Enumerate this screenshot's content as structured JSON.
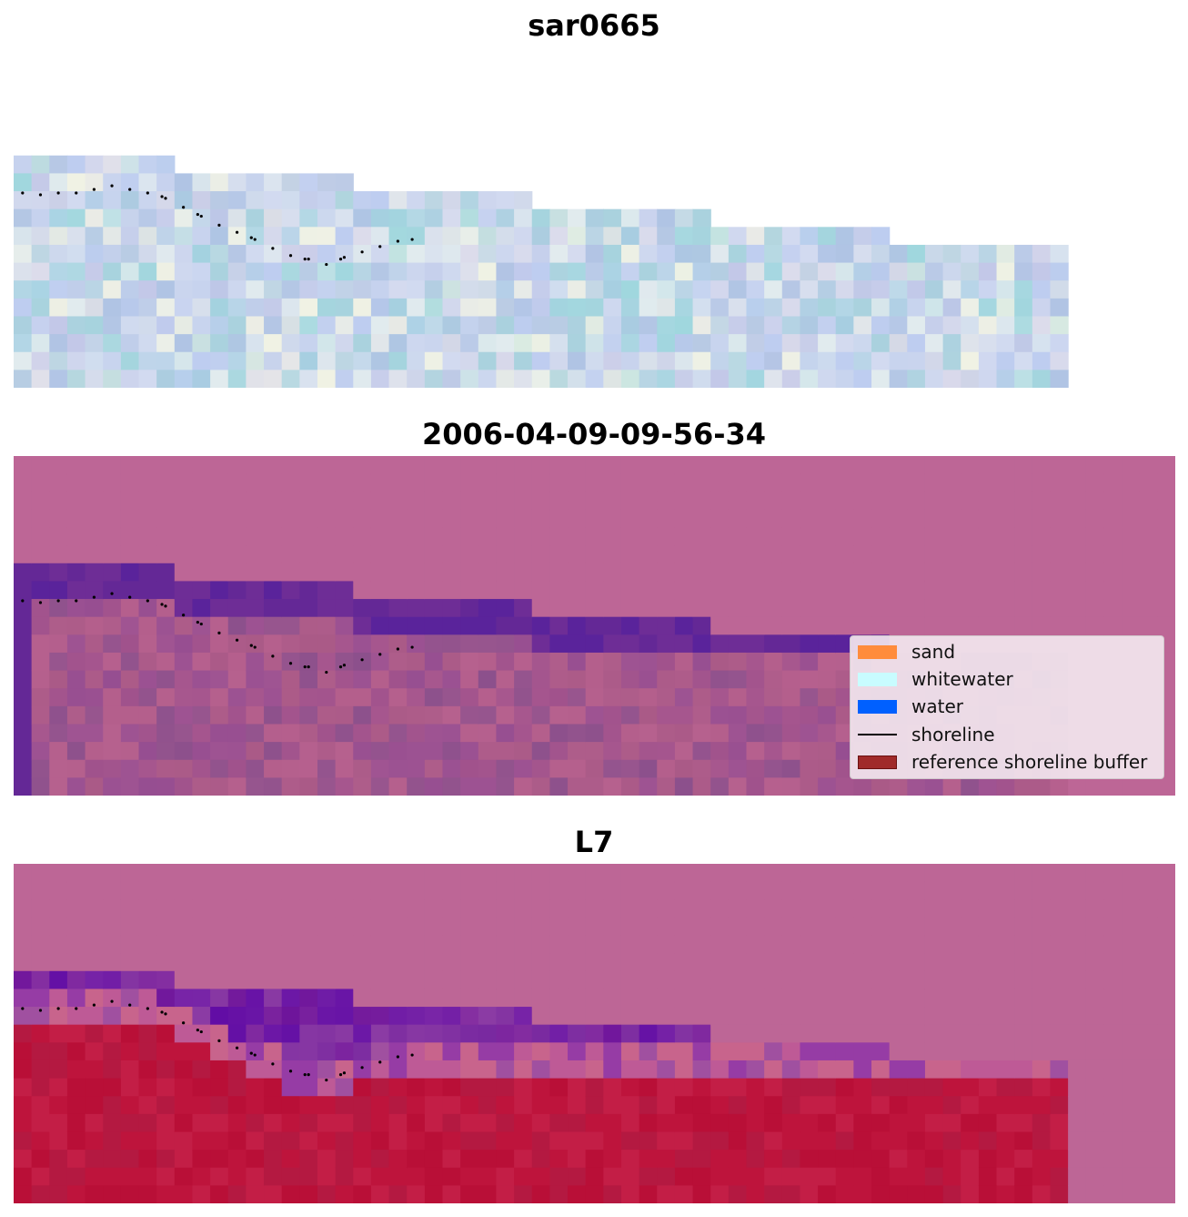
{
  "panels": [
    {
      "title": "sar0665",
      "style": "rgb"
    },
    {
      "title": "2006-04-09-09-56-34",
      "style": "classified"
    },
    {
      "title": "L7",
      "style": "mndwi"
    }
  ],
  "legend": {
    "items": [
      {
        "label": "sand",
        "color": "#ff8c3c",
        "kind": "patch"
      },
      {
        "label": "whitewater",
        "color": "#c8fcff",
        "kind": "patch"
      },
      {
        "label": "water",
        "color": "#0060ff",
        "kind": "patch"
      },
      {
        "label": "shoreline",
        "color": "#000000",
        "kind": "line"
      },
      {
        "label": "reference shoreline buffer",
        "color": "#a02a2a",
        "kind": "patch"
      }
    ]
  },
  "chart_data": {
    "type": "heatmap",
    "grid": {
      "columns": 65,
      "rows": 19
    },
    "valid_extent_steps": [
      {
        "col_start": 0,
        "col_end": 9,
        "row_start": 6
      },
      {
        "col_start": 9,
        "col_end": 19,
        "row_start": 7
      },
      {
        "col_start": 19,
        "col_end": 29,
        "row_start": 8
      },
      {
        "col_start": 29,
        "col_end": 39,
        "row_start": 9
      },
      {
        "col_start": 39,
        "col_end": 49,
        "row_start": 10
      },
      {
        "col_start": 49,
        "col_end": 59,
        "row_start": 11
      }
    ],
    "shoreline": {
      "style": "dotted",
      "color": "#000000",
      "points": [
        [
          0.5,
          8.1
        ],
        [
          1.5,
          8.2
        ],
        [
          2.5,
          8.1
        ],
        [
          3.5,
          8.1
        ],
        [
          4.5,
          7.9
        ],
        [
          5.5,
          7.7
        ],
        [
          6.5,
          7.9
        ],
        [
          7.5,
          8.1
        ],
        [
          8.3,
          8.3
        ],
        [
          8.5,
          8.4
        ],
        [
          9.5,
          8.9
        ],
        [
          10.3,
          9.3
        ],
        [
          10.5,
          9.4
        ],
        [
          11.5,
          9.9
        ],
        [
          12.5,
          10.3
        ],
        [
          13.3,
          10.6
        ],
        [
          13.5,
          10.7
        ],
        [
          14.5,
          11.2
        ],
        [
          15.5,
          11.6
        ],
        [
          16.3,
          11.8
        ],
        [
          16.5,
          11.8
        ],
        [
          17.5,
          12.1
        ],
        [
          18.3,
          11.8
        ],
        [
          18.5,
          11.7
        ],
        [
          19.5,
          11.4
        ],
        [
          20.5,
          11.1
        ],
        [
          21.5,
          10.8
        ],
        [
          22.3,
          10.7
        ]
      ]
    },
    "series": [
      {
        "name": "sar0665"
      },
      {
        "name": "2006-04-09-09-56-34"
      },
      {
        "name": "L7"
      }
    ]
  }
}
